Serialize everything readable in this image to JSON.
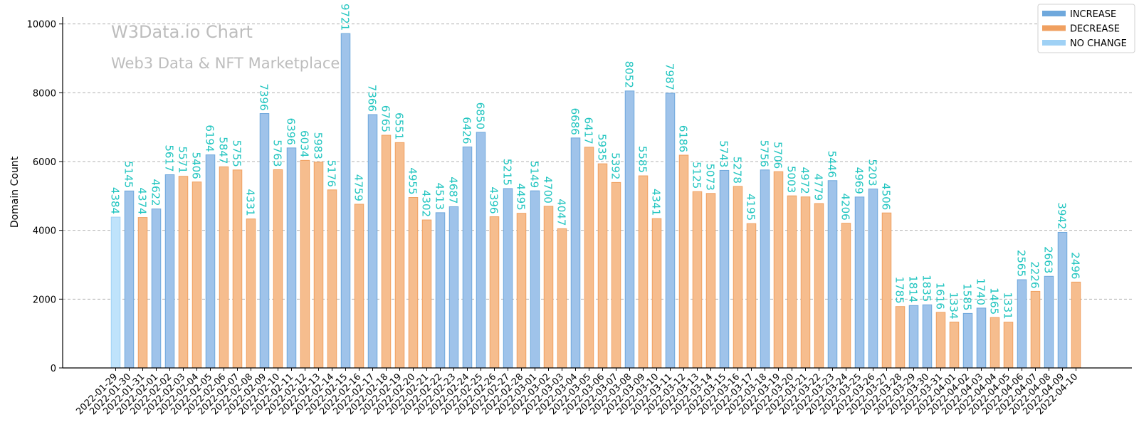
{
  "chart_data": {
    "type": "bar",
    "title": "W3Data.io Chart",
    "subtitle": "Web3 Data & NFT Marketplace",
    "xlabel": "",
    "ylabel": "Domain Count",
    "ylim": [
      0,
      10200
    ],
    "yticks": [
      0,
      2000,
      4000,
      6000,
      8000,
      10000
    ],
    "grid": true,
    "legend_position": "top-right",
    "legend": [
      {
        "key": "increase",
        "label": "INCREASE",
        "color": "#6fa8dc"
      },
      {
        "key": "decrease",
        "label": "DECREASE",
        "color": "#f0a060"
      },
      {
        "key": "nochange",
        "label": "NO CHANGE",
        "color": "#9fd1f5"
      }
    ],
    "colors": {
      "increase_fill": "#9fc3ea",
      "increase_edge": "#6fa8dc",
      "decrease_fill": "#f6bd8e",
      "decrease_edge": "#f0a060",
      "nochange_fill": "#bfe3fb",
      "nochange_edge": "#9fd1f5",
      "label": "#22c5c0"
    },
    "categories": [
      "2022-01-29",
      "2022-01-30",
      "2022-01-31",
      "2022-02-01",
      "2022-02-02",
      "2022-02-03",
      "2022-02-04",
      "2022-02-05",
      "2022-02-06",
      "2022-02-07",
      "2022-02-08",
      "2022-02-09",
      "2022-02-10",
      "2022-02-11",
      "2022-02-12",
      "2022-02-13",
      "2022-02-14",
      "2022-02-15",
      "2022-02-16",
      "2022-02-17",
      "2022-02-18",
      "2022-02-19",
      "2022-02-20",
      "2022-02-21",
      "2022-02-22",
      "2022-02-23",
      "2022-02-24",
      "2022-02-25",
      "2022-02-26",
      "2022-02-27",
      "2022-02-28",
      "2022-03-01",
      "2022-03-02",
      "2022-03-03",
      "2022-03-04",
      "2022-03-05",
      "2022-03-06",
      "2022-03-07",
      "2022-03-08",
      "2022-03-09",
      "2022-03-10",
      "2022-03-11",
      "2022-03-12",
      "2022-03-13",
      "2022-03-14",
      "2022-03-15",
      "2022-03-16",
      "2022-03-17",
      "2022-03-18",
      "2022-03-19",
      "2022-03-20",
      "2022-03-21",
      "2022-03-22",
      "2022-03-23",
      "2022-03-24",
      "2022-03-25",
      "2022-03-26",
      "2022-03-27",
      "2022-03-28",
      "2022-03-29",
      "2022-03-30",
      "2022-03-31",
      "2022-04-01",
      "2022-04-02",
      "2022-04-03",
      "2022-04-04",
      "2022-04-05",
      "2022-04-06",
      "2022-04-07",
      "2022-04-08",
      "2022-04-09",
      "2022-04-10"
    ],
    "values": [
      4384,
      5145,
      4374,
      4622,
      5617,
      5571,
      5406,
      6194,
      5847,
      5755,
      4331,
      7396,
      5763,
      6396,
      6034,
      5983,
      5176,
      9721,
      4759,
      7366,
      6765,
      6551,
      4955,
      4302,
      4513,
      4687,
      6426,
      6850,
      4396,
      5215,
      4495,
      5149,
      4700,
      4047,
      6686,
      6417,
      5935,
      5392,
      8052,
      5585,
      4341,
      7987,
      6186,
      5125,
      5073,
      5743,
      5278,
      4195,
      5756,
      5706,
      5003,
      4972,
      4779,
      5446,
      4206,
      4969,
      5203,
      4506,
      1785,
      1814,
      1835,
      1616,
      1334,
      1585,
      1740,
      1465,
      1331,
      2565,
      2226,
      2663,
      3942,
      2496
    ],
    "status": [
      "nochange",
      "increase",
      "decrease",
      "increase",
      "increase",
      "decrease",
      "decrease",
      "increase",
      "decrease",
      "decrease",
      "decrease",
      "increase",
      "decrease",
      "increase",
      "decrease",
      "decrease",
      "decrease",
      "increase",
      "decrease",
      "increase",
      "decrease",
      "decrease",
      "decrease",
      "decrease",
      "increase",
      "increase",
      "increase",
      "increase",
      "decrease",
      "increase",
      "decrease",
      "increase",
      "decrease",
      "decrease",
      "increase",
      "decrease",
      "decrease",
      "decrease",
      "increase",
      "decrease",
      "decrease",
      "increase",
      "decrease",
      "decrease",
      "decrease",
      "increase",
      "decrease",
      "decrease",
      "increase",
      "decrease",
      "decrease",
      "decrease",
      "decrease",
      "increase",
      "decrease",
      "increase",
      "increase",
      "decrease",
      "decrease",
      "increase",
      "increase",
      "decrease",
      "decrease",
      "increase",
      "increase",
      "decrease",
      "decrease",
      "increase",
      "decrease",
      "increase",
      "increase",
      "decrease"
    ]
  }
}
